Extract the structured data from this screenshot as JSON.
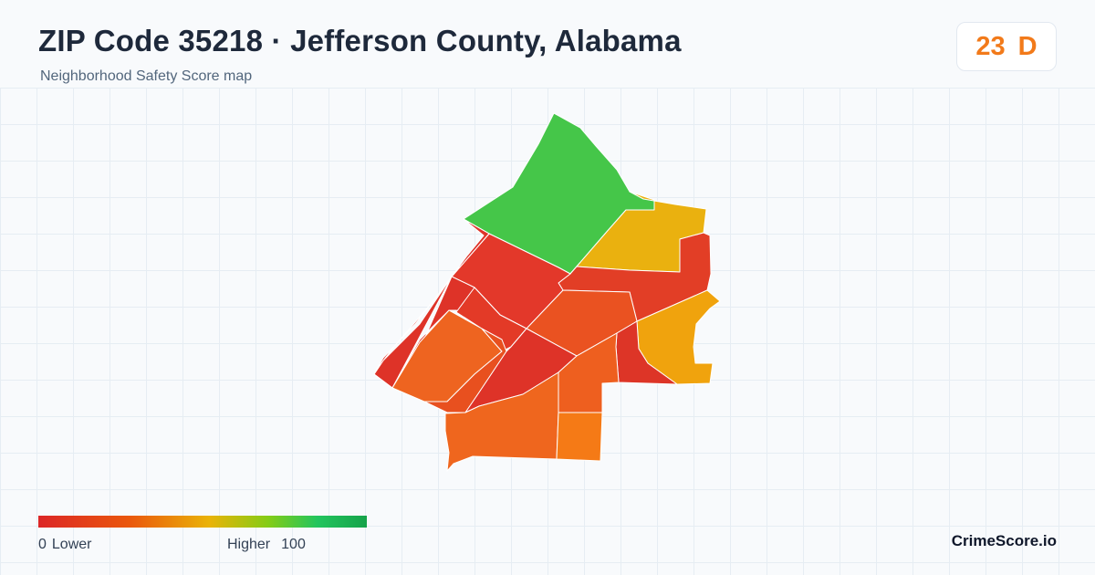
{
  "header": {
    "title": "ZIP Code 35218 · Jefferson County, Alabama",
    "subtitle": "Neighborhood Safety Score map"
  },
  "score": {
    "value": "23",
    "grade": "D",
    "color": "#f27a1a"
  },
  "legend": {
    "min_value": "0",
    "min_label": "Lower",
    "max_label": "Higher",
    "max_value": "100",
    "colors": [
      "#dc2626",
      "#ea580c",
      "#eab308",
      "#84cc16",
      "#22c55e",
      "#16a34a"
    ]
  },
  "brand": "CrimeScore.io",
  "map": {
    "regions": [
      {
        "name": "region-north",
        "color": "#45c649"
      },
      {
        "name": "region-northeast",
        "color": "#eab10f"
      },
      {
        "name": "region-east-upper",
        "color": "#e23e26"
      },
      {
        "name": "region-east",
        "color": "#f0a30d"
      },
      {
        "name": "region-center-north",
        "color": "#e3382a"
      },
      {
        "name": "region-center",
        "color": "#ea5221"
      },
      {
        "name": "region-west-strip",
        "color": "#de3328"
      },
      {
        "name": "region-west-inner",
        "color": "#e33a27"
      },
      {
        "name": "region-southwest",
        "color": "#ee6420"
      },
      {
        "name": "region-south-central",
        "color": "#de3328"
      },
      {
        "name": "region-southeast",
        "color": "#dd3527"
      },
      {
        "name": "region-south-mid",
        "color": "#ee5f1f"
      },
      {
        "name": "region-south",
        "color": "#ef661e"
      },
      {
        "name": "region-south-east-small",
        "color": "#f57a16"
      }
    ]
  }
}
